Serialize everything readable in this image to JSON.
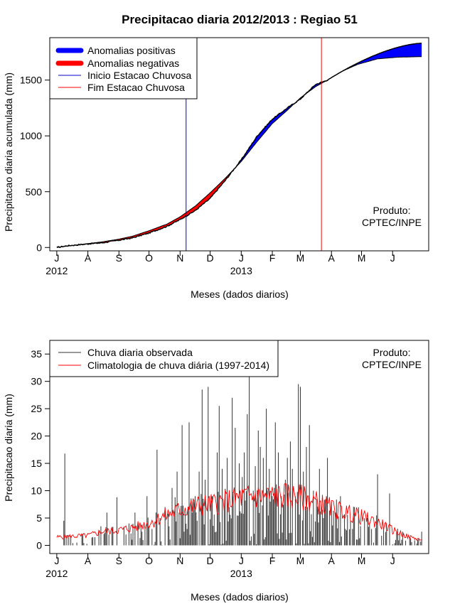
{
  "chart_data": [
    {
      "type": "area",
      "title": "Precipitacao diaria 2012/2013 : Regiao 51",
      "xlabel": "Meses (dados diarios)",
      "ylabel": "Precipitacao diaria acumulada (mm)",
      "ylim": [
        -30,
        1880
      ],
      "yticks": [
        0,
        500,
        1000,
        1500
      ],
      "xlim": [
        -7,
        371
      ],
      "month_ticks": [
        {
          "day": 0,
          "label": "J"
        },
        {
          "day": 31,
          "label": "A"
        },
        {
          "day": 62,
          "label": "S"
        },
        {
          "day": 92,
          "label": "O"
        },
        {
          "day": 123,
          "label": "N"
        },
        {
          "day": 153,
          "label": "D"
        },
        {
          "day": 184,
          "label": "J"
        },
        {
          "day": 215,
          "label": "F"
        },
        {
          "day": 243,
          "label": "M"
        },
        {
          "day": 274,
          "label": "A"
        },
        {
          "day": 304,
          "label": "M"
        },
        {
          "day": 335,
          "label": "J"
        }
      ],
      "year_labels": [
        {
          "day": 0,
          "label": "2012"
        },
        {
          "day": 184,
          "label": "2013"
        }
      ],
      "legend": {
        "position": "top-left",
        "entries": [
          "Anomalias positivas",
          "Anomalias negativas",
          "Inicio Estacao Chuvosa",
          "Fim Estacao Chuvosa"
        ]
      },
      "annotation": {
        "line1": "Produto:",
        "line2": "CPTEC/INPE",
        "position": "bottom-right"
      },
      "rainy_season_start_day": 129,
      "rainy_season_end_day": 264,
      "observed_until_day": 270,
      "end_day": 364,
      "climatology_points": [
        [
          0,
          0
        ],
        [
          10,
          12
        ],
        [
          31,
          35
        ],
        [
          45,
          50
        ],
        [
          62,
          75
        ],
        [
          75,
          100
        ],
        [
          92,
          150
        ],
        [
          110,
          210
        ],
        [
          123,
          275
        ],
        [
          138,
          370
        ],
        [
          153,
          490
        ],
        [
          168,
          620
        ],
        [
          184,
          770
        ],
        [
          200,
          950
        ],
        [
          215,
          1110
        ],
        [
          230,
          1230
        ],
        [
          243,
          1340
        ],
        [
          258,
          1440
        ],
        [
          270,
          1500
        ],
        [
          285,
          1580
        ],
        [
          300,
          1640
        ],
        [
          320,
          1690
        ],
        [
          340,
          1705
        ],
        [
          364,
          1710
        ]
      ],
      "observed_points": [
        [
          0,
          0
        ],
        [
          10,
          15
        ],
        [
          31,
          32
        ],
        [
          45,
          42
        ],
        [
          62,
          65
        ],
        [
          75,
          85
        ],
        [
          92,
          130
        ],
        [
          110,
          190
        ],
        [
          123,
          250
        ],
        [
          138,
          330
        ],
        [
          153,
          440
        ],
        [
          168,
          600
        ],
        [
          184,
          785
        ],
        [
          200,
          1000
        ],
        [
          215,
          1150
        ],
        [
          230,
          1250
        ],
        [
          243,
          1330
        ],
        [
          258,
          1460
        ],
        [
          270,
          1500
        ]
      ],
      "projected_end_total": 1830,
      "colors": {
        "positive": "#0000ff",
        "negative": "#ff0000",
        "start_line": "#0000cd",
        "end_line": "#ff0000",
        "curve": "#000000"
      }
    },
    {
      "type": "bar",
      "xlabel": "Meses (dados diarios)",
      "ylabel": "Precipitacao diaria (mm)",
      "ylim": [
        -1.5,
        37.5
      ],
      "yticks": [
        0,
        5,
        10,
        15,
        20,
        25,
        30,
        35
      ],
      "xlim": [
        -7,
        371
      ],
      "month_ticks": [
        {
          "day": 0,
          "label": "J"
        },
        {
          "day": 31,
          "label": "A"
        },
        {
          "day": 62,
          "label": "S"
        },
        {
          "day": 92,
          "label": "O"
        },
        {
          "day": 123,
          "label": "N"
        },
        {
          "day": 153,
          "label": "D"
        },
        {
          "day": 184,
          "label": "J"
        },
        {
          "day": 215,
          "label": "F"
        },
        {
          "day": 243,
          "label": "M"
        },
        {
          "day": 274,
          "label": "A"
        },
        {
          "day": 304,
          "label": "M"
        },
        {
          "day": 335,
          "label": "J"
        }
      ],
      "year_labels": [
        {
          "day": 0,
          "label": "2012"
        },
        {
          "day": 184,
          "label": "2013"
        }
      ],
      "legend": {
        "position": "top-left",
        "entries": [
          "Chuva diaria observada",
          "Climatologia de chuva diária (1997-2014)"
        ]
      },
      "annotation": {
        "line1": "Produto:",
        "line2": "CPTEC/INPE",
        "position": "top-right"
      },
      "observed_peaks": [
        [
          7,
          4.5
        ],
        [
          8,
          16.8
        ],
        [
          25,
          2
        ],
        [
          38,
          1.5
        ],
        [
          44,
          3.5
        ],
        [
          50,
          6
        ],
        [
          55,
          3
        ],
        [
          60,
          8.8
        ],
        [
          72,
          4
        ],
        [
          78,
          6
        ],
        [
          85,
          2.5
        ],
        [
          90,
          9
        ],
        [
          95,
          3
        ],
        [
          99,
          6
        ],
        [
          100,
          17.5
        ],
        [
          103,
          5
        ],
        [
          108,
          7
        ],
        [
          112,
          3.5
        ],
        [
          115,
          10.5
        ],
        [
          118,
          8.8
        ],
        [
          120,
          13.5
        ],
        [
          122,
          6
        ],
        [
          125,
          22
        ],
        [
          130,
          3
        ],
        [
          132,
          22.5
        ],
        [
          135,
          6
        ],
        [
          138,
          9
        ],
        [
          140,
          4.5
        ],
        [
          142,
          13.5
        ],
        [
          145,
          28.5
        ],
        [
          148,
          12
        ],
        [
          151,
          29
        ],
        [
          155,
          9
        ],
        [
          160,
          17
        ],
        [
          162,
          25.5
        ],
        [
          165,
          14
        ],
        [
          170,
          16
        ],
        [
          172,
          7
        ],
        [
          175,
          27
        ],
        [
          178,
          21.5
        ],
        [
          182,
          15
        ],
        [
          185,
          12.5
        ],
        [
          187,
          17
        ],
        [
          190,
          24
        ],
        [
          192,
          31
        ],
        [
          196,
          10
        ],
        [
          198,
          14.5
        ],
        [
          201,
          21
        ],
        [
          203,
          18
        ],
        [
          206,
          16
        ],
        [
          209,
          25
        ],
        [
          212,
          14
        ],
        [
          215,
          9
        ],
        [
          218,
          22.5
        ],
        [
          221,
          17
        ],
        [
          224,
          9
        ],
        [
          228,
          12
        ],
        [
          230,
          16
        ],
        [
          233,
          19
        ],
        [
          235,
          14
        ],
        [
          238,
          9
        ],
        [
          241,
          29.5
        ],
        [
          243,
          29
        ],
        [
          246,
          13.5
        ],
        [
          249,
          18
        ],
        [
          252,
          22
        ],
        [
          256,
          10
        ],
        [
          259,
          8.5
        ],
        [
          262,
          14
        ],
        [
          265,
          6.5
        ],
        [
          270,
          16
        ],
        [
          274,
          8
        ],
        [
          278,
          6
        ],
        [
          283,
          9
        ],
        [
          288,
          3
        ],
        [
          295,
          3
        ],
        [
          310,
          5
        ],
        [
          314,
          3
        ],
        [
          320,
          13
        ],
        [
          326,
          3
        ],
        [
          332,
          9.5
        ],
        [
          338,
          1
        ],
        [
          345,
          2.5
        ],
        [
          352,
          1.5
        ],
        [
          360,
          1
        ],
        [
          364,
          2.5
        ]
      ],
      "climatology_level": [
        [
          0,
          1.5
        ],
        [
          31,
          1.8
        ],
        [
          45,
          2.5
        ],
        [
          62,
          2.8
        ],
        [
          75,
          3.2
        ],
        [
          92,
          4.0
        ],
        [
          105,
          5.2
        ],
        [
          123,
          6.5
        ],
        [
          138,
          7.2
        ],
        [
          153,
          7.5
        ],
        [
          168,
          8.0
        ],
        [
          184,
          8.8
        ],
        [
          200,
          9.0
        ],
        [
          215,
          9.0
        ],
        [
          230,
          9.1
        ],
        [
          243,
          8.8
        ],
        [
          258,
          8.0
        ],
        [
          274,
          6.8
        ],
        [
          290,
          6.0
        ],
        [
          304,
          5.2
        ],
        [
          320,
          4.2
        ],
        [
          335,
          2.8
        ],
        [
          350,
          1.6
        ],
        [
          364,
          1.0
        ]
      ],
      "colors": {
        "observed": "#333333",
        "climatology": "#ff0000"
      }
    }
  ]
}
